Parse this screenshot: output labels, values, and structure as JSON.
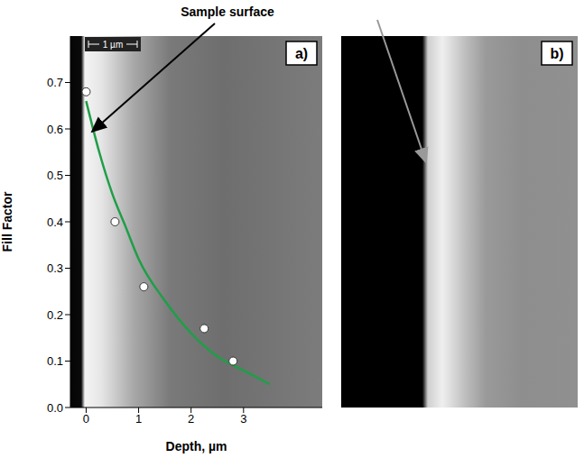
{
  "chart_data": {
    "type": "scatter",
    "annotation": "Sample surface",
    "panels": [
      "a)",
      "b)"
    ],
    "scale_bar": "1 µm",
    "x_label": "Depth, µm",
    "y_label": "Fill Factor",
    "xlim": [
      -0.3,
      4.5
    ],
    "xticks": [
      0,
      1,
      2,
      3
    ],
    "ylim": [
      0,
      0.8
    ],
    "yticks": [
      {
        "value": 0,
        "label": "0.0"
      },
      {
        "value": 0.1,
        "label": "0.1"
      },
      {
        "value": 0.2,
        "label": "0.2"
      },
      {
        "value": 0.3,
        "label": "0.3"
      },
      {
        "value": 0.4,
        "label": "0.4"
      },
      {
        "value": 0.5,
        "label": "0.5"
      },
      {
        "value": 0.6,
        "label": "0.6"
      },
      {
        "value": 0.7,
        "label": "0.7"
      }
    ],
    "grid": false,
    "series": [
      {
        "type": "scatter",
        "marker": "circle",
        "color": "#ffffff",
        "x": [
          0,
          0.55,
          1.1,
          2.25,
          2.8
        ],
        "values": [
          0.68,
          0.4,
          0.26,
          0.17,
          0.1
        ]
      },
      {
        "type": "line",
        "line_style": "solid",
        "color": "#1f9e48",
        "x": [
          0,
          0.25,
          0.5,
          0.75,
          1,
          1.5,
          2,
          2.5,
          3,
          3.5
        ],
        "values": [
          0.66,
          0.55,
          0.46,
          0.39,
          0.32,
          0.23,
          0.16,
          0.11,
          0.08,
          0.05
        ]
      }
    ]
  }
}
